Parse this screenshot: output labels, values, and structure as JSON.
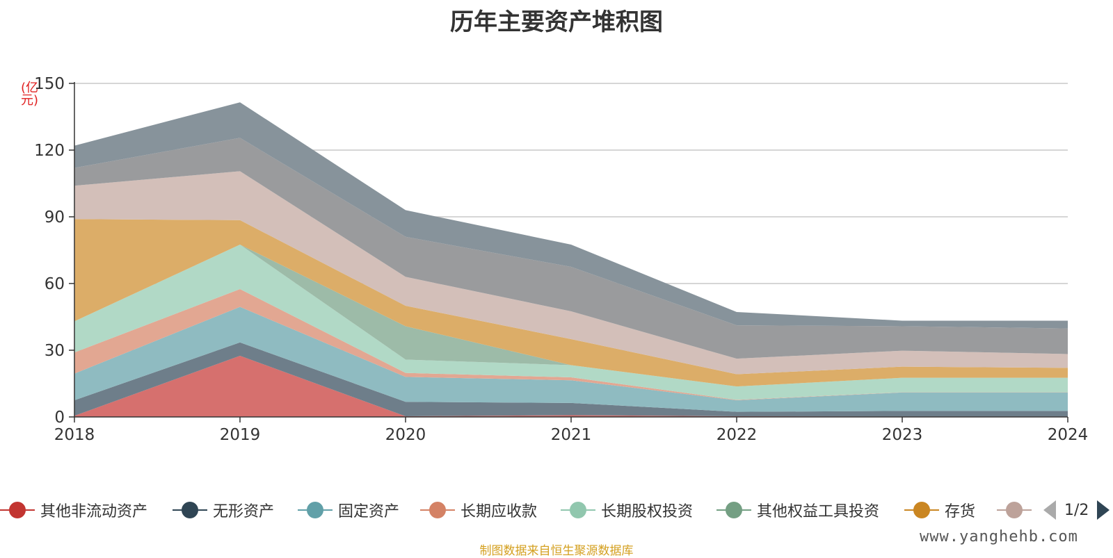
{
  "chart_data": {
    "type": "area",
    "stacked": true,
    "title": "历年主要资产堆积图",
    "ylabel": "(亿元)",
    "ylim": [
      0,
      150
    ],
    "yticks": [
      0,
      30,
      60,
      90,
      120,
      150
    ],
    "x": [
      "2018",
      "2019",
      "2020",
      "2021",
      "2022",
      "2023",
      "2024"
    ],
    "grid": true,
    "series": [
      {
        "name": "其他非流动资产",
        "color": "#c23531",
        "fill": "#d6706e",
        "values": [
          0.5,
          27.5,
          0.3,
          0.8,
          0.3,
          0.2,
          0.2
        ]
      },
      {
        "name": "无形资产",
        "color": "#2f4554",
        "fill": "#6e7e8a",
        "values": [
          7.0,
          6.0,
          6.5,
          5.5,
          2.0,
          2.5,
          2.5
        ]
      },
      {
        "name": "固定资产",
        "color": "#61a0a8",
        "fill": "#8fbbc1",
        "values": [
          12.0,
          16.0,
          11.2,
          10.2,
          5.2,
          8.3,
          8.3
        ]
      },
      {
        "name": "长期应收款",
        "color": "#d48265",
        "fill": "#e2a792",
        "values": [
          9.5,
          8.0,
          1.8,
          1.3,
          0.2,
          0.1,
          0.1
        ]
      },
      {
        "name": "长期股权投资",
        "color": "#91c7ae",
        "fill": "#b1d9c6",
        "values": [
          14.0,
          20.0,
          6.0,
          5.5,
          6.0,
          6.5,
          6.5
        ]
      },
      {
        "name": "其他权益工具投资",
        "color": "#749f83",
        "fill": "#9dbba8",
        "values": [
          0,
          0,
          15.0,
          0,
          0,
          0,
          0
        ]
      },
      {
        "name": "存货",
        "color": "#ca8622",
        "fill": "#dcad68",
        "values": [
          46.0,
          11.0,
          9.2,
          11.7,
          5.5,
          5.0,
          4.5
        ]
      },
      {
        "name": "",
        "color": "#bda29a",
        "fill": "#d3bfb9",
        "values": [
          15.0,
          22.0,
          13.0,
          12.5,
          7.0,
          7.2,
          6.2
        ]
      },
      {
        "name": "",
        "color": "#6e7074",
        "fill": "#9a9b9d",
        "values": [
          8.0,
          15.0,
          18.0,
          20.0,
          15.0,
          11.0,
          11.5
        ]
      },
      {
        "name": "",
        "color": "#546570",
        "fill": "#87939b",
        "values": [
          10.0,
          16.0,
          12.0,
          10.0,
          6.0,
          2.5,
          3.5
        ]
      }
    ]
  },
  "legend": {
    "page": "1/2",
    "items": [
      {
        "label": "其他非流动资产",
        "color": "#c23531"
      },
      {
        "label": "无形资产",
        "color": "#2f4554"
      },
      {
        "label": "固定资产",
        "color": "#61a0a8"
      },
      {
        "label": "长期应收款",
        "color": "#d48265"
      },
      {
        "label": "长期股权投资",
        "color": "#91c7ae"
      },
      {
        "label": "其他权益工具投资",
        "color": "#749f83"
      },
      {
        "label": "存货",
        "color": "#ca8622"
      },
      {
        "label": "",
        "color": "#bda29a"
      }
    ]
  },
  "watermark": "www.yanghehb.com",
  "source_note": "制图数据来自恒生聚源数据库"
}
